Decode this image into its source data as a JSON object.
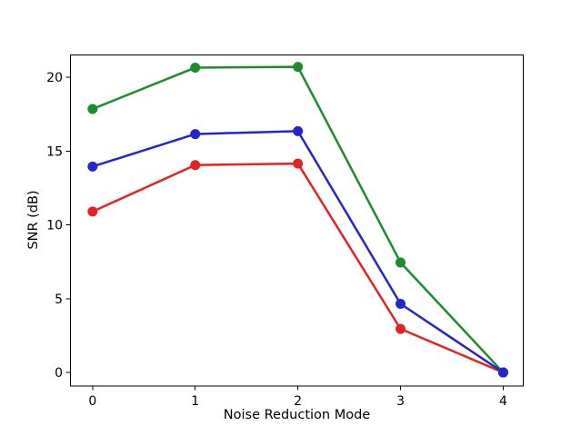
{
  "figure": {
    "background": "#ffffff"
  },
  "chart_data": {
    "type": "line",
    "xlabel": "Noise Reduction Mode",
    "ylabel": "SNR (dB)",
    "x": [
      0,
      1,
      2,
      3,
      4
    ],
    "xticks": [
      0,
      1,
      2,
      3,
      4
    ],
    "yticks": [
      0,
      5,
      10,
      15,
      20
    ],
    "xlim": [
      -0.22,
      4.2
    ],
    "ylim": [
      -0.92,
      21.54
    ],
    "grid": false,
    "legend": "none",
    "marker": "circle",
    "axis_color": "#000000",
    "text_color": "#000000",
    "series": [
      {
        "name": "red",
        "color": "#e32222",
        "values": [
          10.9,
          14.05,
          14.15,
          2.95,
          0.0
        ]
      },
      {
        "name": "green",
        "color": "#1e8b2d",
        "values": [
          17.85,
          20.65,
          20.7,
          7.45,
          0.0
        ]
      },
      {
        "name": "blue",
        "color": "#2525d0",
        "values": [
          13.95,
          16.15,
          16.35,
          4.65,
          0.0
        ]
      }
    ]
  }
}
